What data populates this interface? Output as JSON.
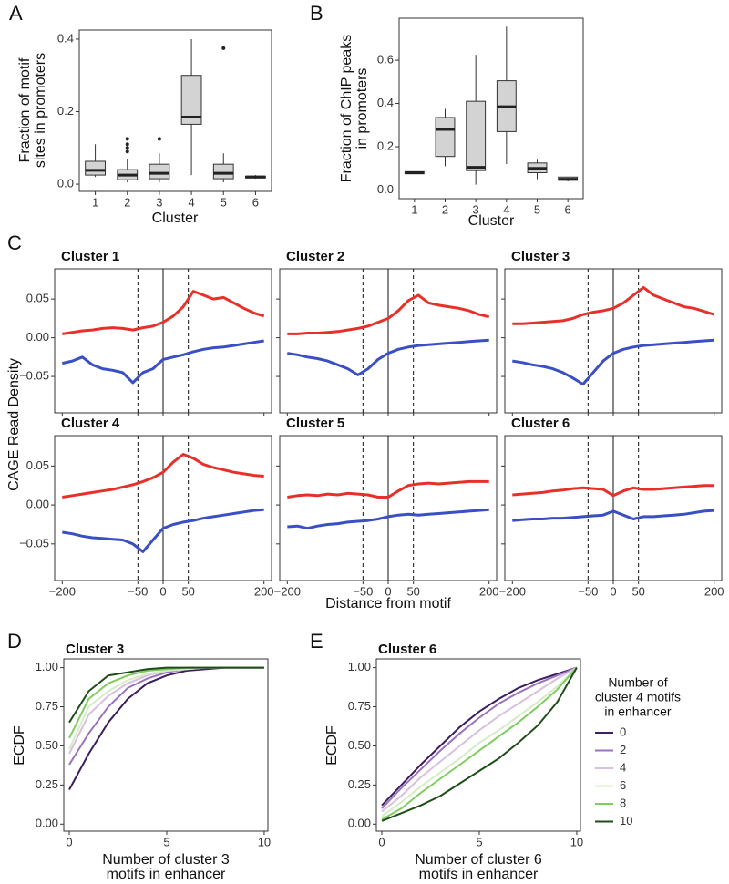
{
  "chart_data": [
    {
      "type": "box",
      "panel": "A",
      "ylabel": [
        "Fraction of motif",
        "sites in promoters"
      ],
      "xlabel": "Cluster",
      "categories": [
        "1",
        "2",
        "3",
        "4",
        "5",
        "6"
      ],
      "color": "#d3d3d3",
      "ylim": [
        -0.02,
        0.425
      ],
      "yticks": [
        {
          "value": 0,
          "label": "0.0"
        },
        0.2,
        0.4
      ],
      "boxes": [
        {
          "min": 0.02,
          "q1": 0.025,
          "median": 0.038,
          "q3": 0.063,
          "max": 0.11
        },
        {
          "min": 0.005,
          "q1": 0.012,
          "median": 0.025,
          "q3": 0.04,
          "max": 0.07,
          "outliers": [
            0.09,
            0.1,
            0.11,
            0.125
          ]
        },
        {
          "min": 0.005,
          "q1": 0.015,
          "median": 0.03,
          "q3": 0.055,
          "max": 0.085,
          "outliers": [
            0.125
          ]
        },
        {
          "min": 0.025,
          "q1": 0.165,
          "median": 0.185,
          "q3": 0.3,
          "max": 0.4
        },
        {
          "min": 0.005,
          "q1": 0.015,
          "median": 0.03,
          "q3": 0.055,
          "max": 0.085,
          "outliers": [
            0.375
          ]
        },
        {
          "min": 0.015,
          "q1": 0.017,
          "median": 0.02,
          "q3": 0.022,
          "max": 0.025
        }
      ]
    },
    {
      "type": "box",
      "panel": "B",
      "ylabel": [
        "Fraction of ChIP peaks",
        "in promoters"
      ],
      "xlabel": "Cluster",
      "categories": [
        "1",
        "2",
        "3",
        "4",
        "5",
        "6"
      ],
      "color": "#d3d3d3",
      "ylim": [
        -0.04,
        0.794
      ],
      "yticks": [
        {
          "value": 0,
          "label": "0.0"
        },
        0.2,
        0.4,
        0.6
      ],
      "boxes": [
        {
          "min": 0.075,
          "q1": 0.075,
          "median": 0.08,
          "q3": 0.085,
          "max": 0.085
        },
        {
          "min": 0.11,
          "q1": 0.155,
          "median": 0.28,
          "q3": 0.335,
          "max": 0.375
        },
        {
          "min": 0.025,
          "q1": 0.09,
          "median": 0.105,
          "q3": 0.41,
          "max": 0.625
        },
        {
          "min": 0.12,
          "q1": 0.27,
          "median": 0.385,
          "q3": 0.505,
          "max": 0.755
        },
        {
          "min": 0.05,
          "q1": 0.08,
          "median": 0.1,
          "q3": 0.125,
          "max": 0.14
        },
        {
          "min": 0.04,
          "q1": 0.045,
          "median": 0.05,
          "q3": 0.06,
          "max": 0.06
        }
      ]
    },
    {
      "type": "line",
      "panel": "C",
      "ylabel": "CAGE Read Density",
      "xlabel": "Distance from motif",
      "x": [
        -200,
        -180,
        -160,
        -140,
        -120,
        -100,
        -80,
        -60,
        -40,
        -20,
        0,
        20,
        40,
        60,
        80,
        100,
        120,
        140,
        160,
        180,
        200
      ],
      "xlim": [
        -215,
        215
      ],
      "xticks": [
        {
          "value": -200,
          "label": "−200"
        },
        {
          "value": -50,
          "label": "−50"
        },
        0,
        50,
        200
      ],
      "ylim": [
        -0.097,
        0.089
      ],
      "yticks": [
        {
          "value": 0.05,
          "label": "0.05"
        },
        {
          "value": 0,
          "label": "0.00"
        },
        {
          "value": -0.05,
          "label": "−0.05"
        }
      ],
      "vlines": [
        {
          "x": -50,
          "style": "dashed"
        },
        {
          "x": 0,
          "style": "solid"
        },
        {
          "x": 50,
          "style": "dashed"
        }
      ],
      "panels": [
        {
          "title": "Cluster 1",
          "series": [
            {
              "color": "#e8302a",
              "values": [
                0.005,
                0.007,
                0.009,
                0.01,
                0.012,
                0.013,
                0.012,
                0.01,
                0.013,
                0.015,
                0.02,
                0.028,
                0.04,
                0.06,
                0.055,
                0.05,
                0.052,
                0.045,
                0.038,
                0.032,
                0.028
              ]
            },
            {
              "color": "#3b4fc4",
              "values": [
                -0.033,
                -0.03,
                -0.025,
                -0.035,
                -0.04,
                -0.042,
                -0.045,
                -0.058,
                -0.045,
                -0.04,
                -0.028,
                -0.025,
                -0.022,
                -0.018,
                -0.015,
                -0.013,
                -0.012,
                -0.01,
                -0.008,
                -0.006,
                -0.004
              ]
            }
          ]
        },
        {
          "title": "Cluster 2",
          "series": [
            {
              "color": "#e8302a",
              "values": [
                0.005,
                0.005,
                0.006,
                0.006,
                0.007,
                0.008,
                0.01,
                0.012,
                0.015,
                0.02,
                0.025,
                0.035,
                0.048,
                0.055,
                0.045,
                0.042,
                0.04,
                0.038,
                0.035,
                0.03,
                0.027
              ]
            },
            {
              "color": "#3b4fc4",
              "values": [
                -0.02,
                -0.022,
                -0.025,
                -0.027,
                -0.03,
                -0.035,
                -0.04,
                -0.048,
                -0.04,
                -0.028,
                -0.02,
                -0.015,
                -0.012,
                -0.01,
                -0.009,
                -0.008,
                -0.007,
                -0.006,
                -0.005,
                -0.004,
                -0.003
              ]
            }
          ]
        },
        {
          "title": "Cluster 3",
          "series": [
            {
              "color": "#e8302a",
              "values": [
                0.018,
                0.018,
                0.019,
                0.02,
                0.021,
                0.022,
                0.025,
                0.03,
                0.033,
                0.035,
                0.038,
                0.045,
                0.055,
                0.065,
                0.055,
                0.05,
                0.045,
                0.04,
                0.038,
                0.034,
                0.03
              ]
            },
            {
              "color": "#3b4fc4",
              "values": [
                -0.03,
                -0.032,
                -0.035,
                -0.037,
                -0.04,
                -0.045,
                -0.052,
                -0.06,
                -0.045,
                -0.03,
                -0.02,
                -0.015,
                -0.012,
                -0.01,
                -0.009,
                -0.008,
                -0.007,
                -0.006,
                -0.005,
                -0.004,
                -0.003
              ]
            }
          ]
        },
        {
          "title": "Cluster 4",
          "series": [
            {
              "color": "#e8302a",
              "values": [
                0.01,
                0.012,
                0.014,
                0.016,
                0.018,
                0.02,
                0.023,
                0.026,
                0.03,
                0.035,
                0.042,
                0.055,
                0.065,
                0.06,
                0.052,
                0.048,
                0.045,
                0.042,
                0.04,
                0.038,
                0.037
              ]
            },
            {
              "color": "#3b4fc4",
              "values": [
                -0.035,
                -0.037,
                -0.04,
                -0.042,
                -0.043,
                -0.044,
                -0.045,
                -0.05,
                -0.06,
                -0.045,
                -0.03,
                -0.025,
                -0.022,
                -0.02,
                -0.017,
                -0.015,
                -0.013,
                -0.011,
                -0.009,
                -0.007,
                -0.006
              ]
            }
          ]
        },
        {
          "title": "Cluster 5",
          "series": [
            {
              "color": "#e8302a",
              "values": [
                0.01,
                0.012,
                0.013,
                0.012,
                0.014,
                0.013,
                0.015,
                0.014,
                0.013,
                0.01,
                0.01,
                0.018,
                0.025,
                0.027,
                0.028,
                0.027,
                0.028,
                0.029,
                0.03,
                0.03,
                0.03
              ]
            },
            {
              "color": "#3b4fc4",
              "values": [
                -0.028,
                -0.027,
                -0.03,
                -0.027,
                -0.025,
                -0.024,
                -0.022,
                -0.021,
                -0.02,
                -0.018,
                -0.015,
                -0.013,
                -0.012,
                -0.013,
                -0.012,
                -0.011,
                -0.01,
                -0.009,
                -0.008,
                -0.007,
                -0.006
              ]
            }
          ]
        },
        {
          "title": "Cluster 6",
          "series": [
            {
              "color": "#e8302a",
              "values": [
                0.013,
                0.014,
                0.015,
                0.016,
                0.018,
                0.019,
                0.021,
                0.022,
                0.021,
                0.02,
                0.012,
                0.018,
                0.022,
                0.02,
                0.02,
                0.021,
                0.022,
                0.023,
                0.024,
                0.025,
                0.025
              ]
            },
            {
              "color": "#3b4fc4",
              "values": [
                -0.02,
                -0.019,
                -0.018,
                -0.018,
                -0.017,
                -0.017,
                -0.016,
                -0.015,
                -0.014,
                -0.013,
                -0.008,
                -0.013,
                -0.018,
                -0.015,
                -0.015,
                -0.014,
                -0.013,
                -0.012,
                -0.01,
                -0.008,
                -0.007
              ]
            }
          ]
        }
      ]
    },
    {
      "type": "line",
      "panel": "D",
      "title": "Cluster 3",
      "ylabel": "ECDF",
      "xlabel": [
        "Number of cluster 3",
        "motifs in enhancer"
      ],
      "x": [
        0,
        1,
        2,
        3,
        4,
        5,
        6,
        7,
        8,
        9,
        10
      ],
      "xlim": [
        -0.28,
        10.19
      ],
      "xticks": [
        0,
        5,
        10
      ],
      "ylim": [
        -0.045,
        1.056
      ],
      "yticks": [
        {
          "value": 0,
          "label": "0.00"
        },
        {
          "value": 0.25,
          "label": "0.25"
        },
        {
          "value": 0.5,
          "label": "0.50"
        },
        {
          "value": 0.75,
          "label": "0.75"
        },
        {
          "value": 1,
          "label": "1.00"
        }
      ],
      "series": [
        {
          "color": "#3b1f5e",
          "values": [
            0.22,
            0.45,
            0.65,
            0.8,
            0.9,
            0.95,
            0.98,
            0.99,
            1,
            1,
            1
          ]
        },
        {
          "color": "#9b72c0",
          "values": [
            0.38,
            0.58,
            0.75,
            0.87,
            0.93,
            0.97,
            0.99,
            1,
            1,
            1,
            1
          ]
        },
        {
          "color": "#d8c0e0",
          "values": [
            0.45,
            0.7,
            0.82,
            0.9,
            0.95,
            0.98,
            0.99,
            1,
            1,
            1,
            1
          ]
        },
        {
          "color": "#d6ecc6",
          "values": [
            0.48,
            0.75,
            0.85,
            0.92,
            0.96,
            0.98,
            0.99,
            1,
            1,
            1,
            1
          ]
        },
        {
          "color": "#7fcc5f",
          "values": [
            0.55,
            0.8,
            0.9,
            0.95,
            0.98,
            0.99,
            1,
            1,
            1,
            1,
            1
          ]
        },
        {
          "color": "#1f4d1a",
          "values": [
            0.65,
            0.85,
            0.95,
            0.97,
            0.99,
            1,
            1,
            1,
            1,
            1,
            1
          ]
        }
      ]
    },
    {
      "type": "line",
      "panel": "E",
      "title": "Cluster 6",
      "ylabel": "ECDF",
      "xlabel": [
        "Number of cluster 6",
        "motifs in enhancer"
      ],
      "x": [
        0,
        1,
        2,
        3,
        4,
        5,
        6,
        7,
        8,
        9,
        10
      ],
      "xlim": [
        -0.28,
        10.19
      ],
      "xticks": [
        0,
        5,
        10
      ],
      "ylim": [
        -0.045,
        1.056
      ],
      "yticks": [
        {
          "value": 0,
          "label": "0.00"
        },
        {
          "value": 0.25,
          "label": "0.25"
        },
        {
          "value": 0.5,
          "label": "0.50"
        },
        {
          "value": 0.75,
          "label": "0.75"
        },
        {
          "value": 1,
          "label": "1.00"
        }
      ],
      "legend_title": [
        "Number of",
        "cluster 4 motifs",
        "in enhancer"
      ],
      "legend": "right",
      "series": [
        {
          "name": "0",
          "color": "#3b1f5e",
          "values": [
            0.12,
            0.25,
            0.38,
            0.5,
            0.62,
            0.72,
            0.8,
            0.87,
            0.92,
            0.96,
            1
          ]
        },
        {
          "name": "2",
          "color": "#9b72c0",
          "values": [
            0.1,
            0.23,
            0.35,
            0.47,
            0.58,
            0.68,
            0.77,
            0.84,
            0.9,
            0.95,
            1
          ]
        },
        {
          "name": "4",
          "color": "#d8c0e0",
          "values": [
            0.08,
            0.18,
            0.3,
            0.4,
            0.5,
            0.6,
            0.69,
            0.77,
            0.85,
            0.93,
            1
          ]
        },
        {
          "name": "6",
          "color": "#d6ecc6",
          "values": [
            0.05,
            0.14,
            0.24,
            0.33,
            0.42,
            0.52,
            0.6,
            0.69,
            0.78,
            0.88,
            1
          ]
        },
        {
          "name": "8",
          "color": "#7fcc5f",
          "values": [
            0.03,
            0.1,
            0.2,
            0.29,
            0.38,
            0.47,
            0.56,
            0.65,
            0.75,
            0.86,
            1
          ]
        },
        {
          "name": "10",
          "color": "#1f4d1a",
          "values": [
            0.02,
            0.07,
            0.12,
            0.18,
            0.26,
            0.34,
            0.42,
            0.52,
            0.63,
            0.78,
            1
          ]
        }
      ]
    }
  ]
}
